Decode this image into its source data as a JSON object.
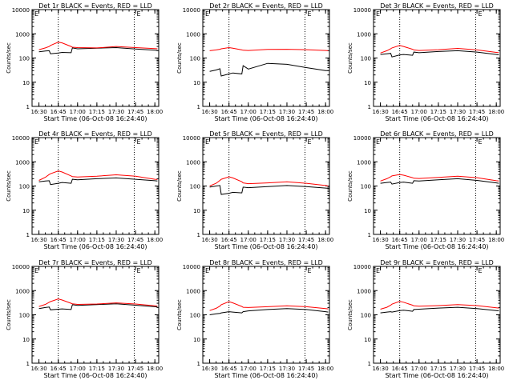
{
  "common": {
    "xlabel": "Start Time (06-Oct-08 16:24:40)",
    "ylabel": "Counts/sec",
    "x_ticks": [
      "16:30",
      "16:45",
      "17:00",
      "17:15",
      "17:30",
      "17:45",
      "18:00"
    ],
    "y_ticks": [
      "1",
      "10",
      "100",
      "1000",
      "10000"
    ],
    "marker_label": "E",
    "colors": {
      "events": "#000000",
      "lld": "#ff0000",
      "frame": "#000000",
      "background": "#ffffff"
    }
  },
  "chart_data": [
    {
      "type": "line",
      "title": "Det 1r BLACK = Events, RED = LLD",
      "x": [
        "16:30",
        "16:35",
        "16:38",
        "16:39",
        "16:45",
        "16:48",
        "16:55",
        "16:56",
        "17:00",
        "17:15",
        "17:30",
        "17:45",
        "18:00",
        "18:02"
      ],
      "series": [
        {
          "name": "Events",
          "values": [
            180,
            195,
            200,
            150,
            160,
            170,
            165,
            260,
            240,
            255,
            270,
            235,
            210,
            205
          ]
        },
        {
          "name": "LLD",
          "values": [
            220,
            260,
            300,
            330,
            450,
            420,
            300,
            280,
            270,
            260,
            300,
            270,
            245,
            240
          ]
        }
      ],
      "ylim": [
        1,
        10000
      ],
      "yscale": "log",
      "grid": false,
      "vlines": [
        "16:45",
        "17:44"
      ]
    },
    {
      "type": "line",
      "title": "Det 2r BLACK = Events, RED = LLD",
      "x": [
        "16:30",
        "16:35",
        "16:38",
        "16:39",
        "16:45",
        "16:48",
        "16:55",
        "16:56",
        "17:00",
        "17:15",
        "17:30",
        "17:45",
        "18:00",
        "18:02"
      ],
      "series": [
        {
          "name": "Events",
          "values": [
            28,
            32,
            36,
            18,
            22,
            24,
            22,
            48,
            35,
            60,
            55,
            40,
            30,
            30
          ]
        },
        {
          "name": "LLD",
          "values": [
            200,
            215,
            230,
            240,
            270,
            255,
            215,
            210,
            205,
            225,
            230,
            220,
            205,
            200
          ]
        }
      ],
      "ylim": [
        1,
        10000
      ],
      "yscale": "log",
      "grid": false,
      "vlines": [
        "16:45",
        "17:44"
      ]
    },
    {
      "type": "line",
      "title": "Det 3r BLACK = Events, RED = LLD",
      "x": [
        "16:30",
        "16:35",
        "16:38",
        "16:39",
        "16:45",
        "16:48",
        "16:55",
        "16:56",
        "17:00",
        "17:15",
        "17:30",
        "17:45",
        "18:00",
        "18:02"
      ],
      "series": [
        {
          "name": "Events",
          "values": [
            140,
            150,
            155,
            110,
            135,
            140,
            130,
            175,
            165,
            185,
            200,
            175,
            140,
            135
          ]
        },
        {
          "name": "LLD",
          "values": [
            160,
            200,
            240,
            260,
            330,
            300,
            230,
            215,
            205,
            220,
            250,
            215,
            170,
            165
          ]
        }
      ],
      "ylim": [
        1,
        10000
      ],
      "yscale": "log",
      "grid": false,
      "vlines": [
        "16:45",
        "17:44"
      ]
    },
    {
      "type": "line",
      "title": "Det 4r BLACK = Events, RED = LLD",
      "x": [
        "16:30",
        "16:35",
        "16:38",
        "16:39",
        "16:45",
        "16:48",
        "16:55",
        "16:56",
        "17:00",
        "17:15",
        "17:30",
        "17:45",
        "18:00",
        "18:02"
      ],
      "series": [
        {
          "name": "Events",
          "values": [
            150,
            160,
            165,
            115,
            130,
            140,
            130,
            190,
            180,
            200,
            215,
            190,
            165,
            160
          ]
        },
        {
          "name": "LLD",
          "values": [
            170,
            230,
            300,
            320,
            420,
            380,
            260,
            245,
            235,
            255,
            290,
            255,
            190,
            185
          ]
        }
      ],
      "ylim": [
        1,
        10000
      ],
      "yscale": "log",
      "grid": false,
      "vlines": [
        "16:45",
        "17:44"
      ]
    },
    {
      "type": "line",
      "title": "Det 5r BLACK = Events, RED = LLD",
      "x": [
        "16:30",
        "16:35",
        "16:38",
        "16:39",
        "16:45",
        "16:48",
        "16:55",
        "16:56",
        "17:00",
        "17:15",
        "17:30",
        "17:45",
        "18:00",
        "18:02"
      ],
      "series": [
        {
          "name": "Events",
          "values": [
            90,
            100,
            105,
            45,
            50,
            55,
            52,
            90,
            85,
            95,
            105,
            95,
            82,
            80
          ]
        },
        {
          "name": "LLD",
          "values": [
            100,
            130,
            170,
            190,
            240,
            215,
            150,
            135,
            125,
            135,
            150,
            130,
            105,
            100
          ]
        }
      ],
      "ylim": [
        1,
        10000
      ],
      "yscale": "log",
      "grid": false,
      "vlines": [
        "16:45",
        "17:44"
      ]
    },
    {
      "type": "line",
      "title": "Det 6r BLACK = Events, RED = LLD",
      "x": [
        "16:30",
        "16:35",
        "16:38",
        "16:39",
        "16:45",
        "16:48",
        "16:55",
        "16:56",
        "17:00",
        "17:15",
        "17:30",
        "17:45",
        "18:00",
        "18:02"
      ],
      "series": [
        {
          "name": "Events",
          "values": [
            130,
            140,
            145,
            120,
            140,
            145,
            130,
            165,
            160,
            180,
            200,
            170,
            135,
            130
          ]
        },
        {
          "name": "LLD",
          "values": [
            160,
            200,
            240,
            260,
            300,
            280,
            220,
            210,
            205,
            225,
            255,
            220,
            165,
            160
          ]
        }
      ],
      "ylim": [
        1,
        10000
      ],
      "yscale": "log",
      "grid": false,
      "vlines": [
        "16:45",
        "17:44"
      ]
    },
    {
      "type": "line",
      "title": "Det 7r BLACK = Events, RED = LLD",
      "x": [
        "16:30",
        "16:35",
        "16:38",
        "16:39",
        "16:45",
        "16:48",
        "16:55",
        "16:56",
        "17:00",
        "17:15",
        "17:30",
        "17:45",
        "18:00",
        "18:02"
      ],
      "series": [
        {
          "name": "Events",
          "values": [
            180,
            200,
            210,
            160,
            170,
            175,
            165,
            260,
            245,
            265,
            285,
            250,
            215,
            210
          ]
        },
        {
          "name": "LLD",
          "values": [
            220,
            270,
            330,
            350,
            450,
            410,
            300,
            285,
            270,
            280,
            310,
            280,
            235,
            230
          ]
        }
      ],
      "ylim": [
        1,
        10000
      ],
      "yscale": "log",
      "grid": false,
      "vlines": [
        "16:45",
        "17:44"
      ]
    },
    {
      "type": "line",
      "title": "Det 8r BLACK = Events, RED = LLD",
      "x": [
        "16:30",
        "16:35",
        "16:38",
        "16:39",
        "16:45",
        "16:48",
        "16:55",
        "16:56",
        "17:00",
        "17:15",
        "17:30",
        "17:45",
        "18:00",
        "18:02"
      ],
      "series": [
        {
          "name": "Events",
          "values": [
            100,
            110,
            115,
            120,
            135,
            130,
            120,
            135,
            145,
            165,
            180,
            165,
            135,
            130
          ]
        },
        {
          "name": "LLD",
          "values": [
            150,
            185,
            230,
            260,
            350,
            310,
            220,
            205,
            200,
            215,
            235,
            215,
            180,
            175
          ]
        }
      ],
      "ylim": [
        1,
        10000
      ],
      "yscale": "log",
      "grid": false,
      "vlines": [
        "16:45",
        "17:44"
      ]
    },
    {
      "type": "line",
      "title": "Det 9r BLACK = Events, RED = LLD",
      "x": [
        "16:30",
        "16:35",
        "16:38",
        "16:39",
        "16:45",
        "16:48",
        "16:55",
        "16:56",
        "17:00",
        "17:15",
        "17:30",
        "17:45",
        "18:00",
        "18:02"
      ],
      "series": [
        {
          "name": "Events",
          "values": [
            120,
            130,
            135,
            130,
            150,
            155,
            140,
            165,
            170,
            190,
            205,
            180,
            150,
            145
          ]
        },
        {
          "name": "LLD",
          "values": [
            170,
            205,
            250,
            275,
            360,
            330,
            250,
            235,
            225,
            240,
            265,
            240,
            195,
            190
          ]
        }
      ],
      "ylim": [
        1,
        10000
      ],
      "yscale": "log",
      "grid": false,
      "vlines": [
        "16:45",
        "17:44"
      ]
    }
  ]
}
